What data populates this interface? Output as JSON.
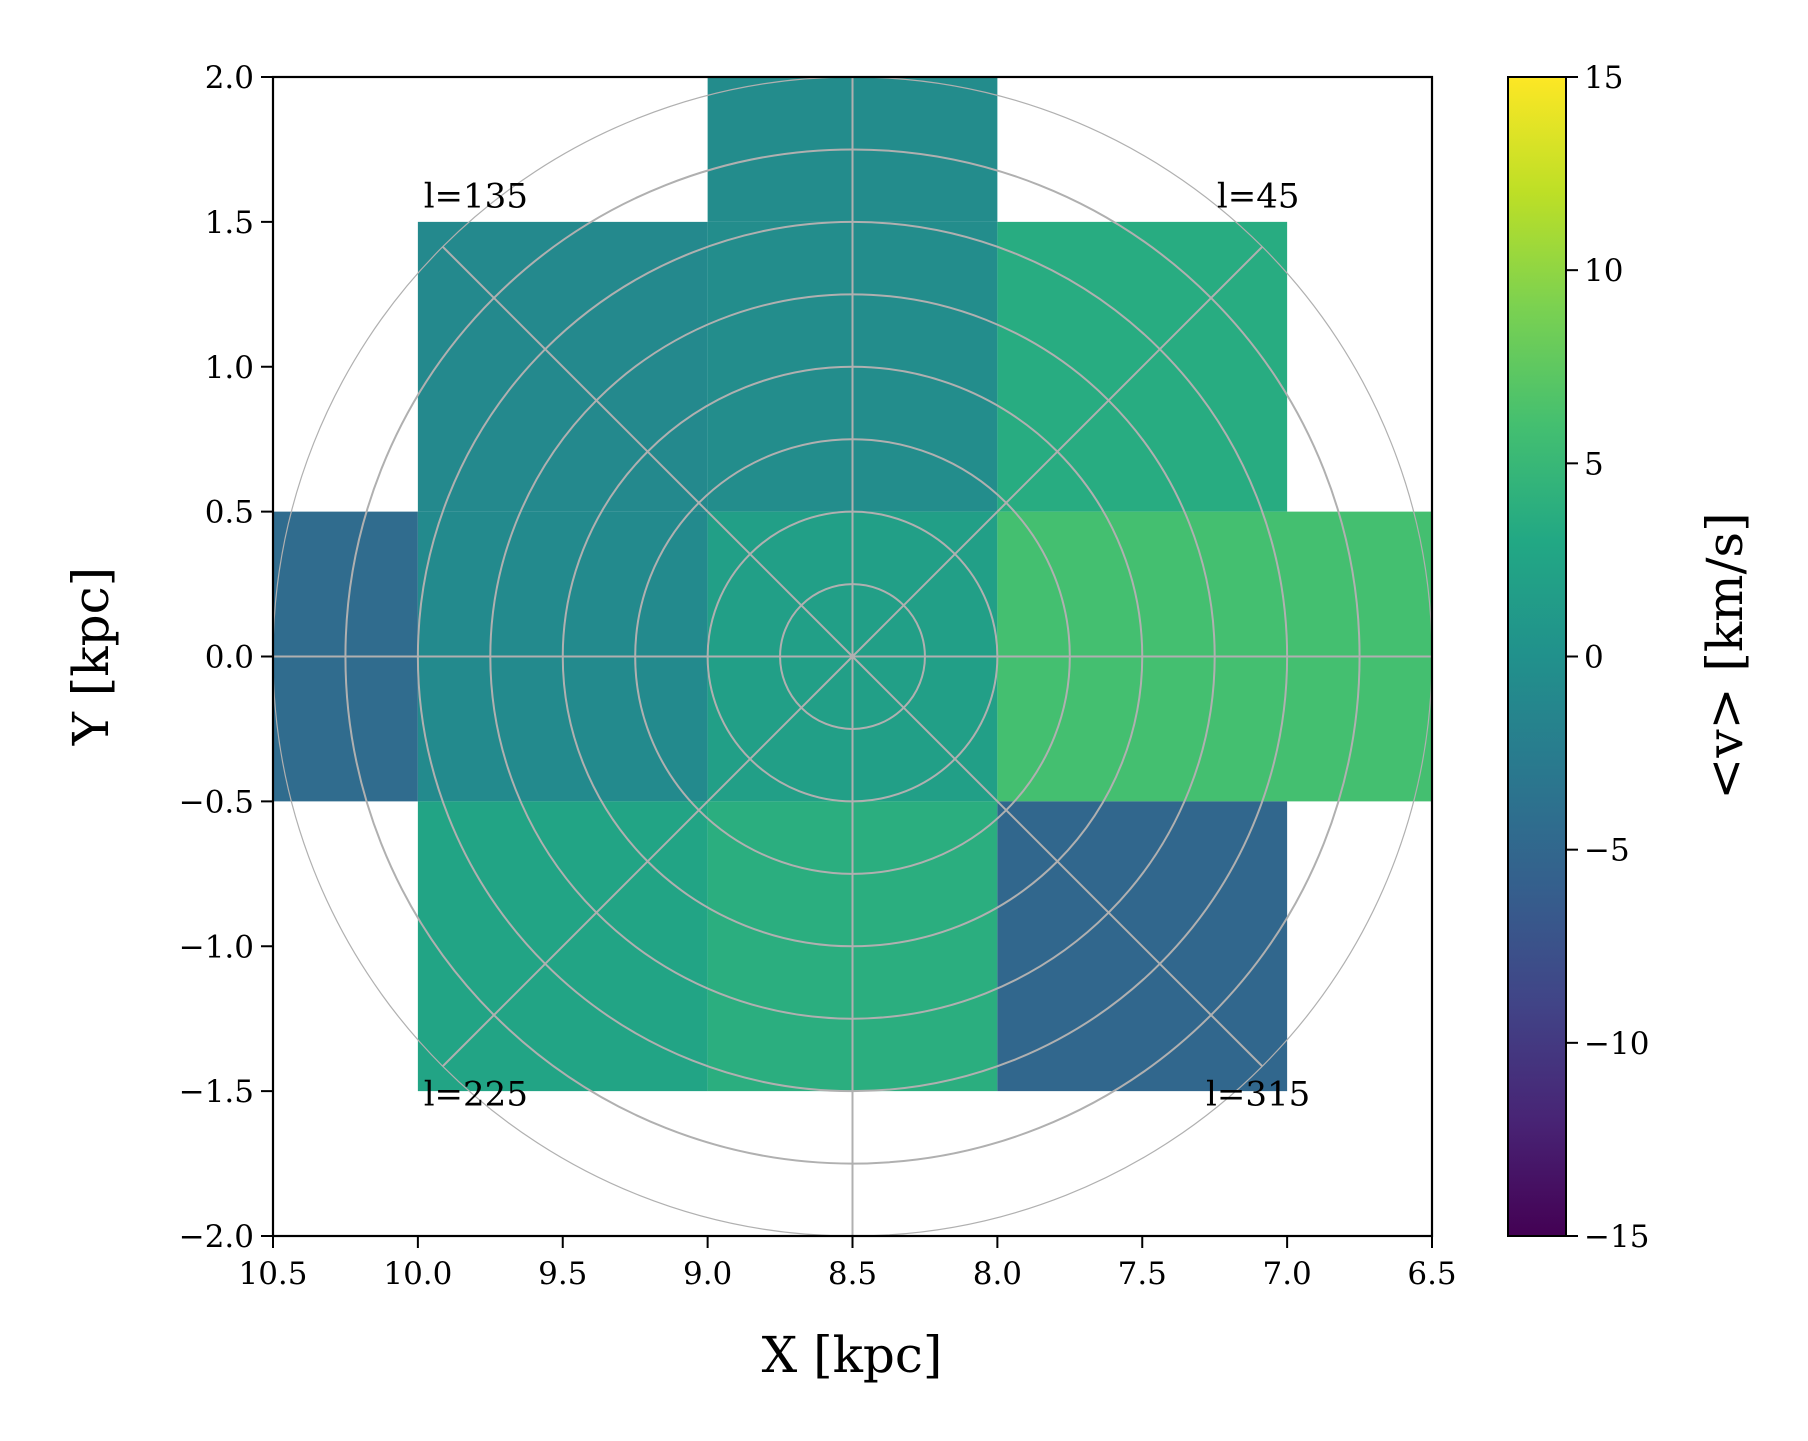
{
  "chart_data": {
    "type": "heatmap",
    "xlabel": "X [kpc]",
    "ylabel": "Y [kpc]",
    "colorbar_label": "<v> [km/s]",
    "colormap": "viridis",
    "xlim": [
      10.5,
      6.5
    ],
    "ylim": [
      -2.0,
      2.0
    ],
    "clim": [
      -15,
      15
    ],
    "x_ticks": [
      10.5,
      10.0,
      9.5,
      9.0,
      8.5,
      8.0,
      7.5,
      7.0,
      6.5
    ],
    "x_tick_labels": [
      "10.5",
      "10.0",
      "9.5",
      "9.0",
      "8.5",
      "8.0",
      "7.5",
      "7.0",
      "6.5"
    ],
    "y_ticks": [
      2.0,
      1.5,
      1.0,
      0.5,
      0.0,
      -0.5,
      -1.0,
      -1.5,
      -2.0
    ],
    "y_tick_labels": [
      "2.0",
      "1.5",
      "1.0",
      "0.5",
      "0.0",
      "−0.5",
      "−1.0",
      "−1.5",
      "−2.0"
    ],
    "colorbar_ticks": [
      15,
      10,
      5,
      0,
      -5,
      -10,
      -15
    ],
    "colorbar_tick_labels": [
      "15",
      "10",
      "5",
      "0",
      "−5",
      "−10",
      "−15"
    ],
    "cells": [
      {
        "x0": 9.0,
        "x1": 8.0,
        "y0": 1.5,
        "y1": 2.0,
        "value": -0.6
      },
      {
        "x0": 10.0,
        "x1": 9.0,
        "y0": 0.5,
        "y1": 1.5,
        "value": -1.0
      },
      {
        "x0": 9.0,
        "x1": 8.0,
        "y0": 0.5,
        "y1": 1.5,
        "value": -0.5
      },
      {
        "x0": 8.0,
        "x1": 7.0,
        "y0": 0.5,
        "y1": 1.5,
        "value": 3.5
      },
      {
        "x0": 10.5,
        "x1": 10.0,
        "y0": -0.5,
        "y1": 0.5,
        "value": -4.5
      },
      {
        "x0": 10.0,
        "x1": 9.0,
        "y0": -0.5,
        "y1": 0.5,
        "value": -0.8
      },
      {
        "x0": 9.0,
        "x1": 8.0,
        "y0": -0.5,
        "y1": 0.5,
        "value": 1.8
      },
      {
        "x0": 8.0,
        "x1": 6.5,
        "y0": -0.5,
        "y1": 0.5,
        "value": 6.0
      },
      {
        "x0": 10.0,
        "x1": 9.0,
        "y0": -1.5,
        "y1": -0.5,
        "value": 2.5
      },
      {
        "x0": 9.0,
        "x1": 8.0,
        "y0": -1.5,
        "y1": -0.5,
        "value": 3.8
      },
      {
        "x0": 8.0,
        "x1": 7.0,
        "y0": -1.5,
        "y1": -0.5,
        "value": -5.0
      }
    ],
    "polar_grid": {
      "center": [
        8.5,
        0.0
      ],
      "radii": [
        0.25,
        0.5,
        0.75,
        1.0,
        1.25,
        1.5,
        1.75,
        2.0
      ],
      "spoke_angles_deg": [
        0,
        45,
        90,
        135,
        180,
        225,
        270,
        315
      ]
    },
    "annotations": [
      {
        "text": "l=135",
        "x": 9.8,
        "y": 1.55
      },
      {
        "text": "l=45",
        "x": 7.1,
        "y": 1.55
      },
      {
        "text": "l=225",
        "x": 9.8,
        "y": -1.55
      },
      {
        "text": "l=315",
        "x": 7.1,
        "y": -1.55
      }
    ]
  }
}
